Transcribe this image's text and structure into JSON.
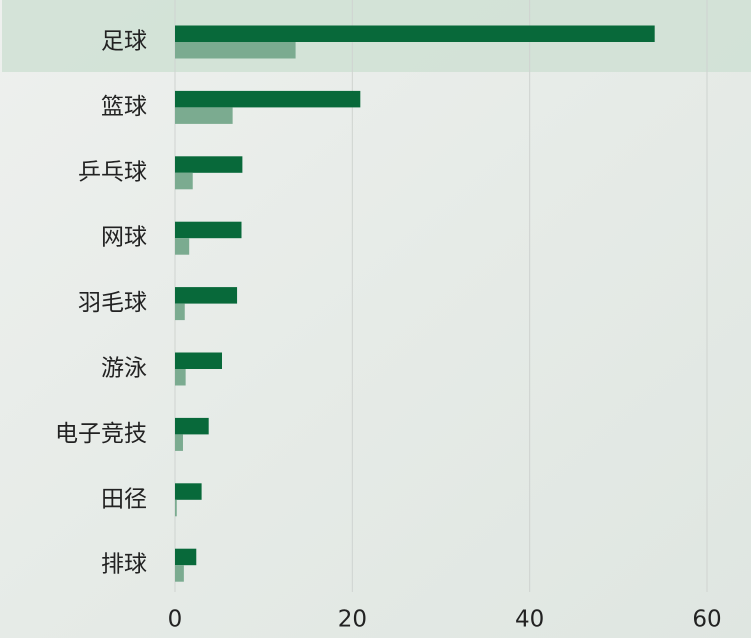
{
  "chart_data": {
    "type": "hbar",
    "categories": [
      "足球",
      "篮球",
      "乒乓球",
      "网球",
      "羽毛球",
      "游泳",
      "电子竞技",
      "田径",
      "排球"
    ],
    "series": [
      {
        "color": "#08693a",
        "values": [
          54.1,
          20.9,
          7.6,
          7.5,
          7.0,
          5.3,
          3.8,
          3.0,
          2.4
        ]
      },
      {
        "color": "#7bab90",
        "values": [
          13.6,
          6.5,
          2.0,
          1.6,
          1.1,
          1.2,
          0.9,
          0.2,
          1.0
        ]
      }
    ],
    "xlim": [
      0,
      65
    ],
    "xticks": [
      0,
      20,
      40,
      60
    ],
    "grid": true
  }
}
